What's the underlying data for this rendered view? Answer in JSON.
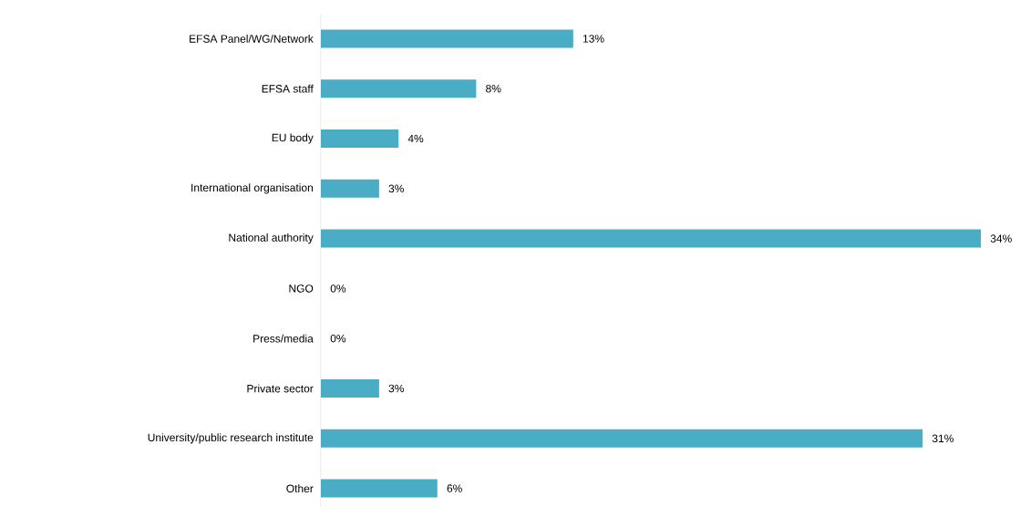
{
  "chart_data": {
    "type": "bar",
    "orientation": "horizontal",
    "color": "#4bacc6",
    "categories": [
      "EFSA Panel/WG/Network",
      "EFSA staff",
      "EU body",
      "International organisation",
      "National authority",
      "NGO",
      "Press/media",
      "Private sector",
      "University/public research institute",
      "Other"
    ],
    "values": [
      13,
      8,
      4,
      3,
      34,
      0,
      0,
      3,
      31,
      6
    ],
    "value_labels": [
      "13%",
      "8%",
      "4%",
      "3%",
      "34%",
      "0%",
      "0%",
      "3%",
      "31%",
      "6%"
    ]
  }
}
